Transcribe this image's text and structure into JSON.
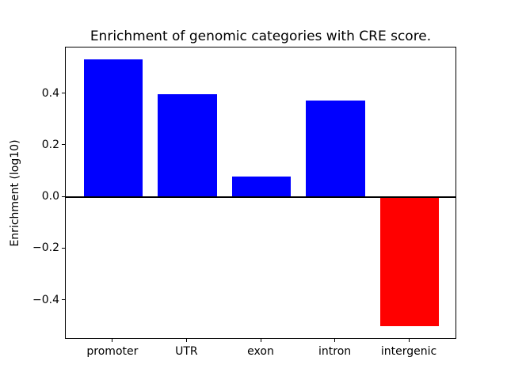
{
  "figure": {
    "background": "#ffffff"
  },
  "chart_data": {
    "type": "bar",
    "title": "Enrichment of genomic categories with CRE score.",
    "xlabel": "",
    "ylabel": "Enrichment (log10)",
    "categories": [
      "promoter",
      "UTR",
      "exon",
      "intron",
      "intergenic"
    ],
    "values": [
      0.535,
      0.4,
      0.08,
      0.375,
      -0.5
    ],
    "bar_colors": [
      "#0000ff",
      "#0000ff",
      "#0000ff",
      "#0000ff",
      "#ff0000"
    ],
    "positive_color": "#0000ff",
    "negative_color": "#ff0000",
    "yticks": [
      0.4,
      0.2,
      0.0,
      -0.2,
      -0.4
    ],
    "ylim": [
      -0.552,
      0.58
    ],
    "xlim": [
      -0.64,
      4.64
    ],
    "bar_width": 0.8,
    "zero_line": true,
    "grid": false,
    "legend_position": "none"
  }
}
